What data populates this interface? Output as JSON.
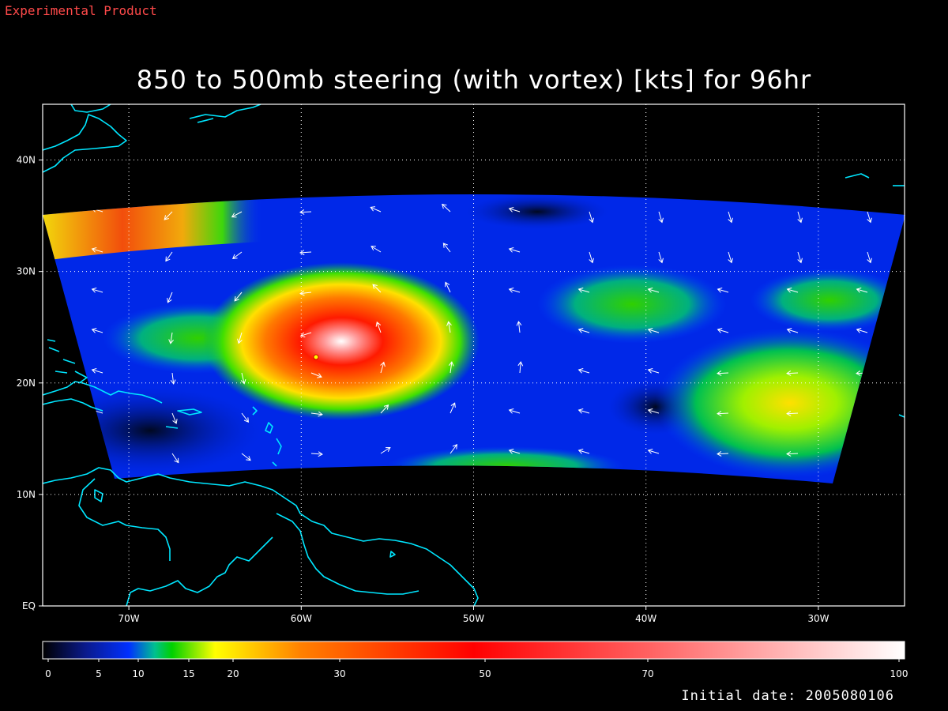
{
  "header": {
    "tag": "Experimental Product",
    "title": "850 to 500mb steering (with vortex) [kts] for 96hr"
  },
  "map": {
    "lat_labels": [
      "EQ",
      "10N",
      "20N",
      "30N",
      "40N"
    ],
    "lat_values": [
      0,
      10,
      20,
      30,
      40
    ],
    "lon_labels": [
      "70W",
      "60W",
      "50W",
      "40W",
      "30W"
    ],
    "lon_values": [
      -70,
      -60,
      -50,
      -40,
      -30
    ],
    "extent": {
      "lon_min": -75,
      "lon_max": -25,
      "lat_min": 0,
      "lat_max": 45
    },
    "coastline_color": "#00e6ff",
    "vortex_center": {
      "lon": -59,
      "lat": 22.5
    }
  },
  "colorbar": {
    "labels": [
      "0",
      "5",
      "10",
      "15",
      "20",
      "30",
      "50",
      "70",
      "100"
    ],
    "values": [
      0,
      5,
      10,
      15,
      20,
      30,
      50,
      70,
      100
    ],
    "stops": [
      {
        "v": 0,
        "color": "#000000"
      },
      {
        "v": 5,
        "color": "#0a1a8c"
      },
      {
        "v": 10,
        "color": "#0030ff"
      },
      {
        "v": 13,
        "color": "#00c090"
      },
      {
        "v": 15,
        "color": "#00d000"
      },
      {
        "v": 20,
        "color": "#ffff00"
      },
      {
        "v": 30,
        "color": "#ff8000"
      },
      {
        "v": 50,
        "color": "#ff0000"
      },
      {
        "v": 70,
        "color": "#ff6060"
      },
      {
        "v": 100,
        "color": "#ffffff"
      }
    ]
  },
  "footer": {
    "initial_date": "Initial date: 2005080106"
  }
}
